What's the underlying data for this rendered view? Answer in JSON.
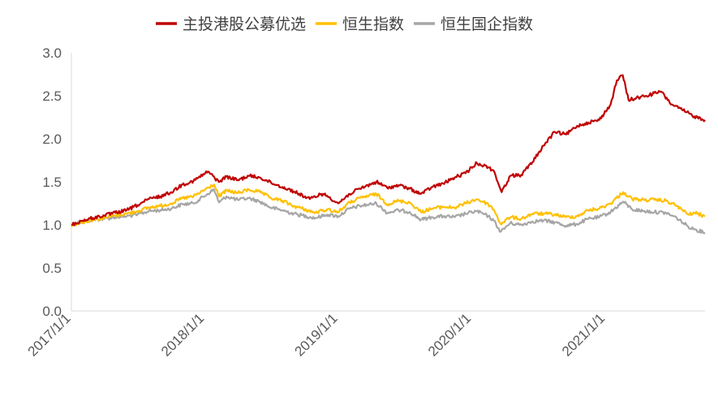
{
  "chart_data": {
    "type": "line",
    "title": "",
    "xlabel": "",
    "ylabel": "",
    "ylim": [
      0,
      3.0
    ],
    "xlim": [
      "2017-01-01",
      "2021-09-30"
    ],
    "y_ticks": [
      "0.0",
      "0.5",
      "1.0",
      "1.5",
      "2.0",
      "2.5",
      "3.0"
    ],
    "x_tick_labels": [
      "2017/1/1",
      "2018/1/1",
      "2019/1/1",
      "2020/1/1",
      "2021/1/1"
    ],
    "x_tick_dates": [
      "2017-01-01",
      "2018-01-01",
      "2019-01-01",
      "2020-01-01",
      "2021-01-01"
    ],
    "grid": false,
    "legend_position": "top",
    "series": [
      {
        "name": "主投港股公募优选",
        "color": "#C00000",
        "points": [
          [
            "2017-01-01",
            1.0
          ],
          [
            "2017-02-01",
            1.05
          ],
          [
            "2017-03-01",
            1.08
          ],
          [
            "2017-04-01",
            1.11
          ],
          [
            "2017-05-01",
            1.14
          ],
          [
            "2017-06-01",
            1.17
          ],
          [
            "2017-07-01",
            1.23
          ],
          [
            "2017-08-01",
            1.3
          ],
          [
            "2017-09-01",
            1.33
          ],
          [
            "2017-10-01",
            1.38
          ],
          [
            "2017-11-01",
            1.47
          ],
          [
            "2017-12-01",
            1.51
          ],
          [
            "2018-01-10",
            1.62
          ],
          [
            "2018-02-08",
            1.5
          ],
          [
            "2018-03-01",
            1.56
          ],
          [
            "2018-04-01",
            1.52
          ],
          [
            "2018-05-01",
            1.57
          ],
          [
            "2018-06-01",
            1.55
          ],
          [
            "2018-07-01",
            1.49
          ],
          [
            "2018-08-01",
            1.44
          ],
          [
            "2018-09-01",
            1.39
          ],
          [
            "2018-10-15",
            1.3
          ],
          [
            "2018-11-15",
            1.36
          ],
          [
            "2018-12-01",
            1.34
          ],
          [
            "2019-01-01",
            1.25
          ],
          [
            "2019-02-01",
            1.36
          ],
          [
            "2019-03-01",
            1.42
          ],
          [
            "2019-04-15",
            1.5
          ],
          [
            "2019-05-15",
            1.43
          ],
          [
            "2019-06-15",
            1.46
          ],
          [
            "2019-07-15",
            1.42
          ],
          [
            "2019-08-15",
            1.36
          ],
          [
            "2019-09-15",
            1.44
          ],
          [
            "2019-10-15",
            1.48
          ],
          [
            "2019-11-15",
            1.55
          ],
          [
            "2019-12-15",
            1.6
          ],
          [
            "2020-01-15",
            1.72
          ],
          [
            "2020-02-15",
            1.67
          ],
          [
            "2020-03-01",
            1.63
          ],
          [
            "2020-03-23",
            1.38
          ],
          [
            "2020-04-15",
            1.57
          ],
          [
            "2020-05-15",
            1.58
          ],
          [
            "2020-06-15",
            1.73
          ],
          [
            "2020-07-15",
            1.92
          ],
          [
            "2020-08-15",
            2.08
          ],
          [
            "2020-09-15",
            2.05
          ],
          [
            "2020-10-15",
            2.15
          ],
          [
            "2020-11-15",
            2.19
          ],
          [
            "2020-12-15",
            2.22
          ],
          [
            "2021-01-15",
            2.4
          ],
          [
            "2021-02-01",
            2.68
          ],
          [
            "2021-02-17",
            2.74
          ],
          [
            "2021-03-05",
            2.45
          ],
          [
            "2021-04-01",
            2.48
          ],
          [
            "2021-05-01",
            2.51
          ],
          [
            "2021-06-01",
            2.55
          ],
          [
            "2021-07-01",
            2.4
          ],
          [
            "2021-08-01",
            2.33
          ],
          [
            "2021-09-01",
            2.26
          ],
          [
            "2021-09-30",
            2.22
          ]
        ]
      },
      {
        "name": "恒生指数",
        "color": "#FFC000",
        "points": [
          [
            "2017-01-01",
            1.0
          ],
          [
            "2017-02-01",
            1.03
          ],
          [
            "2017-03-01",
            1.06
          ],
          [
            "2017-04-01",
            1.08
          ],
          [
            "2017-05-01",
            1.11
          ],
          [
            "2017-06-01",
            1.13
          ],
          [
            "2017-07-01",
            1.16
          ],
          [
            "2017-08-01",
            1.2
          ],
          [
            "2017-09-01",
            1.22
          ],
          [
            "2017-10-01",
            1.25
          ],
          [
            "2017-11-01",
            1.31
          ],
          [
            "2017-12-01",
            1.33
          ],
          [
            "2018-01-26",
            1.47
          ],
          [
            "2018-02-09",
            1.33
          ],
          [
            "2018-03-01",
            1.4
          ],
          [
            "2018-04-01",
            1.37
          ],
          [
            "2018-05-01",
            1.41
          ],
          [
            "2018-06-01",
            1.38
          ],
          [
            "2018-07-01",
            1.31
          ],
          [
            "2018-08-01",
            1.28
          ],
          [
            "2018-09-01",
            1.22
          ],
          [
            "2018-10-30",
            1.14
          ],
          [
            "2018-12-01",
            1.18
          ],
          [
            "2019-01-01",
            1.15
          ],
          [
            "2019-02-01",
            1.26
          ],
          [
            "2019-03-01",
            1.31
          ],
          [
            "2019-04-15",
            1.36
          ],
          [
            "2019-05-15",
            1.24
          ],
          [
            "2019-06-15",
            1.28
          ],
          [
            "2019-07-15",
            1.26
          ],
          [
            "2019-08-15",
            1.15
          ],
          [
            "2019-09-15",
            1.19
          ],
          [
            "2019-10-15",
            1.21
          ],
          [
            "2019-11-15",
            1.2
          ],
          [
            "2019-12-15",
            1.25
          ],
          [
            "2020-01-15",
            1.3
          ],
          [
            "2020-02-15",
            1.24
          ],
          [
            "2020-03-01",
            1.18
          ],
          [
            "2020-03-20",
            1.01
          ],
          [
            "2020-04-15",
            1.09
          ],
          [
            "2020-05-15",
            1.07
          ],
          [
            "2020-06-15",
            1.13
          ],
          [
            "2020-07-15",
            1.13
          ],
          [
            "2020-08-15",
            1.12
          ],
          [
            "2020-09-15",
            1.09
          ],
          [
            "2020-10-15",
            1.1
          ],
          [
            "2020-11-15",
            1.17
          ],
          [
            "2020-12-15",
            1.19
          ],
          [
            "2021-01-15",
            1.25
          ],
          [
            "2021-02-18",
            1.38
          ],
          [
            "2021-03-15",
            1.3
          ],
          [
            "2021-04-15",
            1.29
          ],
          [
            "2021-05-15",
            1.29
          ],
          [
            "2021-06-15",
            1.28
          ],
          [
            "2021-07-15",
            1.22
          ],
          [
            "2021-08-15",
            1.12
          ],
          [
            "2021-09-01",
            1.14
          ],
          [
            "2021-09-30",
            1.1
          ]
        ]
      },
      {
        "name": "恒生国企指数",
        "color": "#A6A6A6",
        "points": [
          [
            "2017-01-01",
            1.0
          ],
          [
            "2017-02-01",
            1.04
          ],
          [
            "2017-03-01",
            1.06
          ],
          [
            "2017-04-01",
            1.07
          ],
          [
            "2017-05-01",
            1.09
          ],
          [
            "2017-06-01",
            1.1
          ],
          [
            "2017-07-01",
            1.12
          ],
          [
            "2017-08-01",
            1.16
          ],
          [
            "2017-09-01",
            1.17
          ],
          [
            "2017-10-01",
            1.19
          ],
          [
            "2017-11-01",
            1.24
          ],
          [
            "2017-12-01",
            1.25
          ],
          [
            "2018-01-26",
            1.41
          ],
          [
            "2018-02-09",
            1.26
          ],
          [
            "2018-03-01",
            1.33
          ],
          [
            "2018-04-01",
            1.29
          ],
          [
            "2018-05-01",
            1.31
          ],
          [
            "2018-06-01",
            1.27
          ],
          [
            "2018-07-01",
            1.2
          ],
          [
            "2018-08-01",
            1.17
          ],
          [
            "2018-09-01",
            1.13
          ],
          [
            "2018-10-30",
            1.08
          ],
          [
            "2018-12-01",
            1.12
          ],
          [
            "2019-01-01",
            1.1
          ],
          [
            "2019-02-01",
            1.19
          ],
          [
            "2019-03-01",
            1.22
          ],
          [
            "2019-04-15",
            1.25
          ],
          [
            "2019-05-15",
            1.14
          ],
          [
            "2019-06-15",
            1.17
          ],
          [
            "2019-07-15",
            1.15
          ],
          [
            "2019-08-15",
            1.06
          ],
          [
            "2019-09-15",
            1.09
          ],
          [
            "2019-10-15",
            1.1
          ],
          [
            "2019-11-15",
            1.09
          ],
          [
            "2019-12-15",
            1.13
          ],
          [
            "2020-01-15",
            1.16
          ],
          [
            "2020-02-15",
            1.1
          ],
          [
            "2020-03-01",
            1.05
          ],
          [
            "2020-03-20",
            0.92
          ],
          [
            "2020-04-15",
            1.02
          ],
          [
            "2020-05-15",
            1.0
          ],
          [
            "2020-06-15",
            1.04
          ],
          [
            "2020-07-15",
            1.05
          ],
          [
            "2020-08-15",
            1.03
          ],
          [
            "2020-09-15",
            0.99
          ],
          [
            "2020-10-15",
            1.01
          ],
          [
            "2020-11-15",
            1.07
          ],
          [
            "2020-12-15",
            1.09
          ],
          [
            "2021-01-15",
            1.15
          ],
          [
            "2021-02-18",
            1.27
          ],
          [
            "2021-03-15",
            1.18
          ],
          [
            "2021-04-15",
            1.16
          ],
          [
            "2021-05-15",
            1.15
          ],
          [
            "2021-06-15",
            1.14
          ],
          [
            "2021-07-15",
            1.08
          ],
          [
            "2021-08-15",
            0.98
          ],
          [
            "2021-09-01",
            0.95
          ],
          [
            "2021-09-30",
            0.91
          ]
        ]
      }
    ]
  }
}
